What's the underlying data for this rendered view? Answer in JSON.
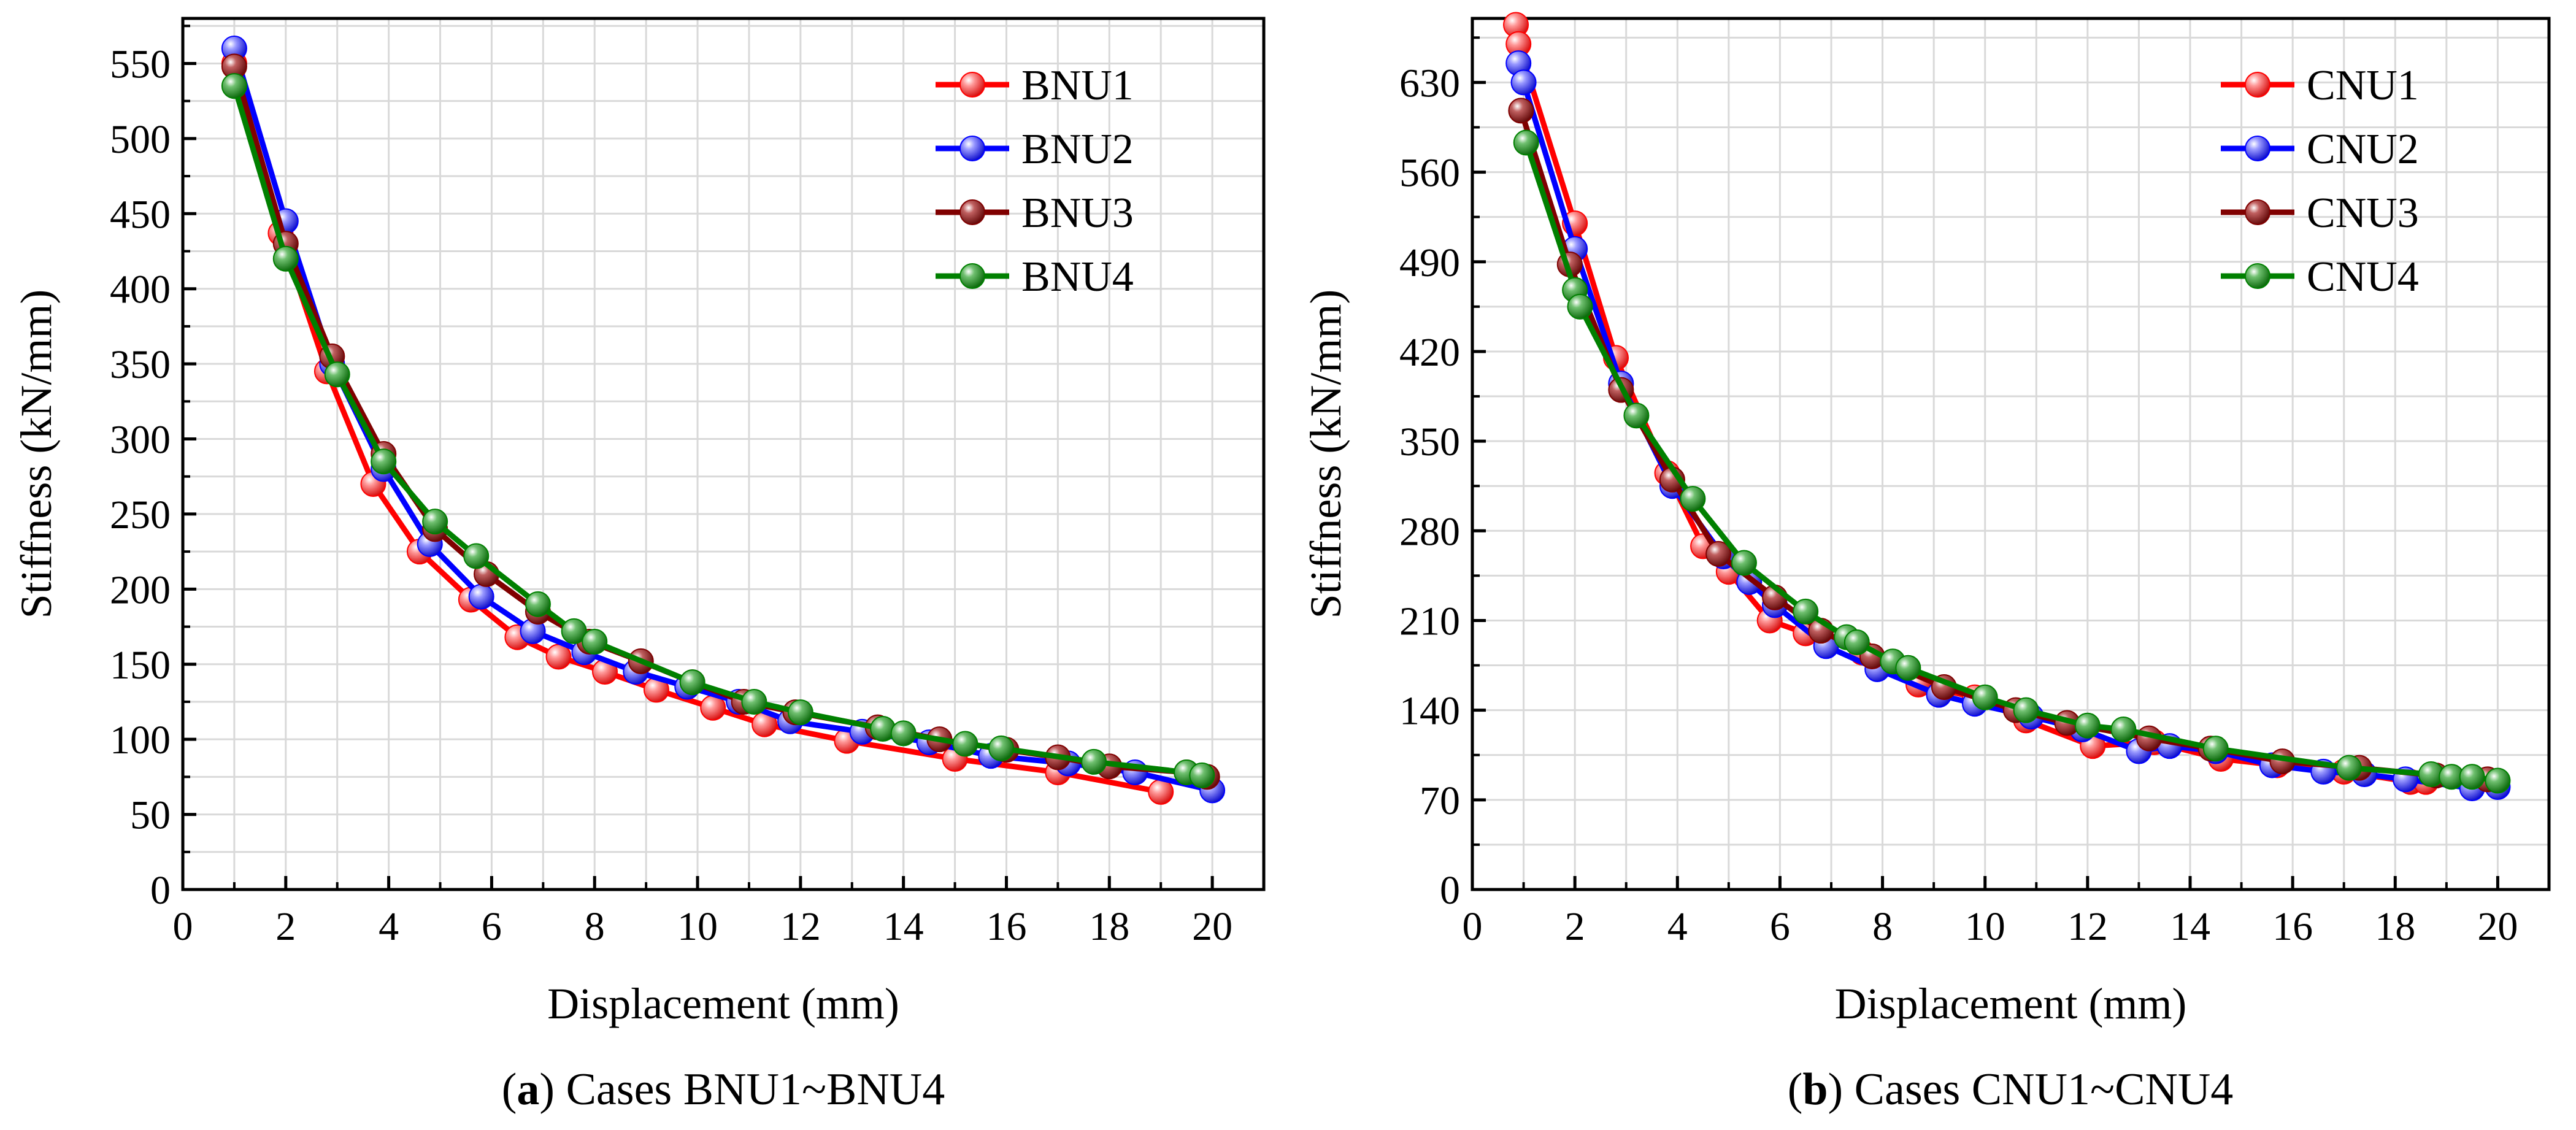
{
  "chart_data": [
    {
      "type": "line",
      "panel_id": "a",
      "xlabel": "Displacement (mm)",
      "ylabel": "Stiffness (kN/mm)",
      "xlim": [
        0,
        21
      ],
      "ylim": [
        0,
        580
      ],
      "xticks": [
        0,
        2,
        4,
        6,
        8,
        10,
        12,
        14,
        16,
        18,
        20
      ],
      "yticks": [
        0,
        50,
        100,
        150,
        200,
        250,
        300,
        350,
        400,
        450,
        500,
        550
      ],
      "grid": true,
      "legend_position": "top-right",
      "caption_letter": "a",
      "caption_text": "Cases BNU1~BNU4",
      "series": [
        {
          "name": "BNU1",
          "color": "#ff0000",
          "x": [
            1.0,
            1.9,
            2.8,
            3.7,
            4.6,
            5.6,
            6.5,
            7.3,
            8.2,
            9.2,
            10.3,
            11.3,
            12.9,
            15.0,
            17.0,
            19.0
          ],
          "y": [
            550,
            437,
            345,
            270,
            225,
            193,
            168,
            155,
            145,
            133,
            121,
            110,
            99,
            87,
            78,
            65
          ]
        },
        {
          "name": "BNU2",
          "color": "#0000ff",
          "x": [
            1.0,
            2.0,
            2.9,
            3.9,
            4.8,
            5.8,
            6.8,
            7.8,
            8.8,
            9.8,
            10.8,
            11.8,
            13.2,
            14.5,
            15.7,
            17.2,
            18.5,
            20.0
          ],
          "y": [
            560,
            445,
            350,
            280,
            230,
            195,
            172,
            158,
            145,
            135,
            125,
            112,
            105,
            98,
            89,
            84,
            78,
            66
          ]
        },
        {
          "name": "BNU3",
          "color": "#800000",
          "x": [
            1.0,
            2.0,
            2.9,
            3.9,
            4.9,
            5.9,
            6.9,
            7.9,
            8.9,
            9.9,
            10.9,
            11.9,
            13.5,
            14.7,
            16.0,
            17.0,
            18.0,
            19.5,
            19.9
          ],
          "y": [
            548,
            430,
            355,
            290,
            240,
            210,
            185,
            165,
            152,
            138,
            125,
            118,
            108,
            100,
            93,
            88,
            82,
            78,
            75
          ]
        },
        {
          "name": "BNU4",
          "color": "#008000",
          "x": [
            1.0,
            2.0,
            3.0,
            3.9,
            4.9,
            5.7,
            6.9,
            7.6,
            8.0,
            9.9,
            11.1,
            12.0,
            13.6,
            14.0,
            15.2,
            15.9,
            17.7,
            19.5,
            19.8
          ],
          "y": [
            535,
            420,
            343,
            285,
            245,
            222,
            190,
            172,
            165,
            138,
            125,
            118,
            107,
            104,
            97,
            94,
            85,
            78,
            76
          ]
        }
      ]
    },
    {
      "type": "line",
      "panel_id": "b",
      "xlabel": "Displacement (mm)",
      "ylabel": "Stiffness (kN/mm)",
      "xlim": [
        0,
        21
      ],
      "ylim": [
        0,
        680
      ],
      "xticks": [
        0,
        2,
        4,
        6,
        8,
        10,
        12,
        14,
        16,
        18,
        20
      ],
      "yticks": [
        0,
        70,
        140,
        210,
        280,
        350,
        420,
        490,
        560,
        630
      ],
      "grid": true,
      "legend_position": "top-right",
      "caption_letter": "b",
      "caption_text": "Cases CNU1~CNU4",
      "series": [
        {
          "name": "CNU1",
          "color": "#ff0000",
          "x": [
            0.85,
            0.9,
            2.0,
            2.8,
            3.8,
            4.5,
            5.0,
            5.8,
            6.5,
            7.6,
            8.7,
            9.8,
            10.8,
            12.1,
            13.3,
            14.6,
            15.7,
            17.0,
            18.3,
            18.6
          ],
          "y": [
            675,
            660,
            520,
            415,
            325,
            268,
            248,
            210,
            200,
            185,
            160,
            150,
            132,
            112,
            115,
            102,
            97,
            92,
            84,
            84
          ]
        },
        {
          "name": "CNU2",
          "color": "#0000ff",
          "x": [
            0.9,
            1.0,
            2.0,
            2.9,
            3.9,
            4.9,
            5.4,
            5.9,
            6.9,
            7.9,
            9.1,
            9.8,
            10.9,
            11.9,
            13.0,
            13.6,
            14.5,
            15.6,
            16.6,
            17.4,
            18.2,
            19.5,
            20.0
          ],
          "y": [
            645,
            630,
            500,
            395,
            315,
            260,
            240,
            222,
            190,
            172,
            152,
            145,
            135,
            125,
            108,
            112,
            108,
            97,
            92,
            90,
            86,
            79,
            80
          ]
        },
        {
          "name": "CNU3",
          "color": "#800000",
          "x": [
            0.95,
            1.9,
            2.9,
            3.9,
            4.8,
            5.9,
            6.8,
            7.8,
            9.2,
            10.6,
            11.6,
            13.2,
            14.4,
            15.8,
            17.3,
            18.8,
            19.8
          ],
          "y": [
            608,
            488,
            390,
            320,
            262,
            228,
            202,
            182,
            158,
            140,
            130,
            118,
            110,
            100,
            95,
            89,
            86
          ]
        },
        {
          "name": "CNU4",
          "color": "#008000",
          "x": [
            1.05,
            2.0,
            2.1,
            3.2,
            4.3,
            5.3,
            6.5,
            7.3,
            7.5,
            8.2,
            8.5,
            10.0,
            10.8,
            12.0,
            12.7,
            14.5,
            17.1,
            18.7,
            19.1,
            19.5,
            20.0
          ],
          "y": [
            583,
            468,
            455,
            370,
            305,
            255,
            217,
            197,
            193,
            178,
            173,
            150,
            140,
            128,
            125,
            110,
            95,
            90,
            88,
            88,
            85
          ]
        }
      ]
    }
  ]
}
